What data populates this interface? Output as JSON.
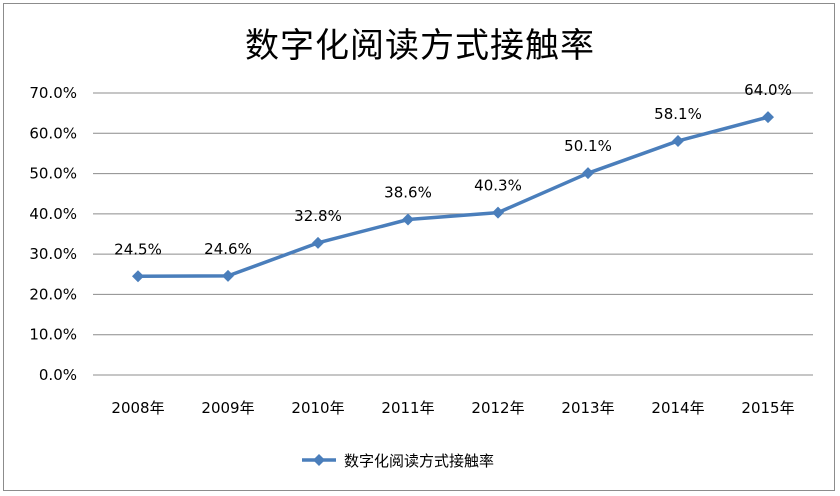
{
  "chart_data": {
    "type": "line",
    "title": "数字化阅读方式接触率",
    "xlabel": "",
    "ylabel": "",
    "categories": [
      "2008年",
      "2009年",
      "2010年",
      "2011年",
      "2012年",
      "2013年",
      "2014年",
      "2015年"
    ],
    "series": [
      {
        "name": "数字化阅读方式接触率",
        "values": [
          24.5,
          24.6,
          32.8,
          38.6,
          40.3,
          50.1,
          58.1,
          64.0
        ],
        "data_labels": [
          "24.5%",
          "24.6%",
          "32.8%",
          "38.6%",
          "40.3%",
          "50.1%",
          "58.1%",
          "64.0%"
        ]
      }
    ],
    "ylim": [
      0,
      70
    ],
    "yticks": [
      0,
      10,
      20,
      30,
      40,
      50,
      60,
      70
    ],
    "ytick_labels": [
      "0.0%",
      "10.0%",
      "20.0%",
      "30.0%",
      "40.0%",
      "50.0%",
      "60.0%",
      "70.0%"
    ],
    "grid": true,
    "legend_position": "bottom",
    "colors": {
      "series": "#4a7ebb",
      "grid": "#8c8c8c"
    }
  }
}
